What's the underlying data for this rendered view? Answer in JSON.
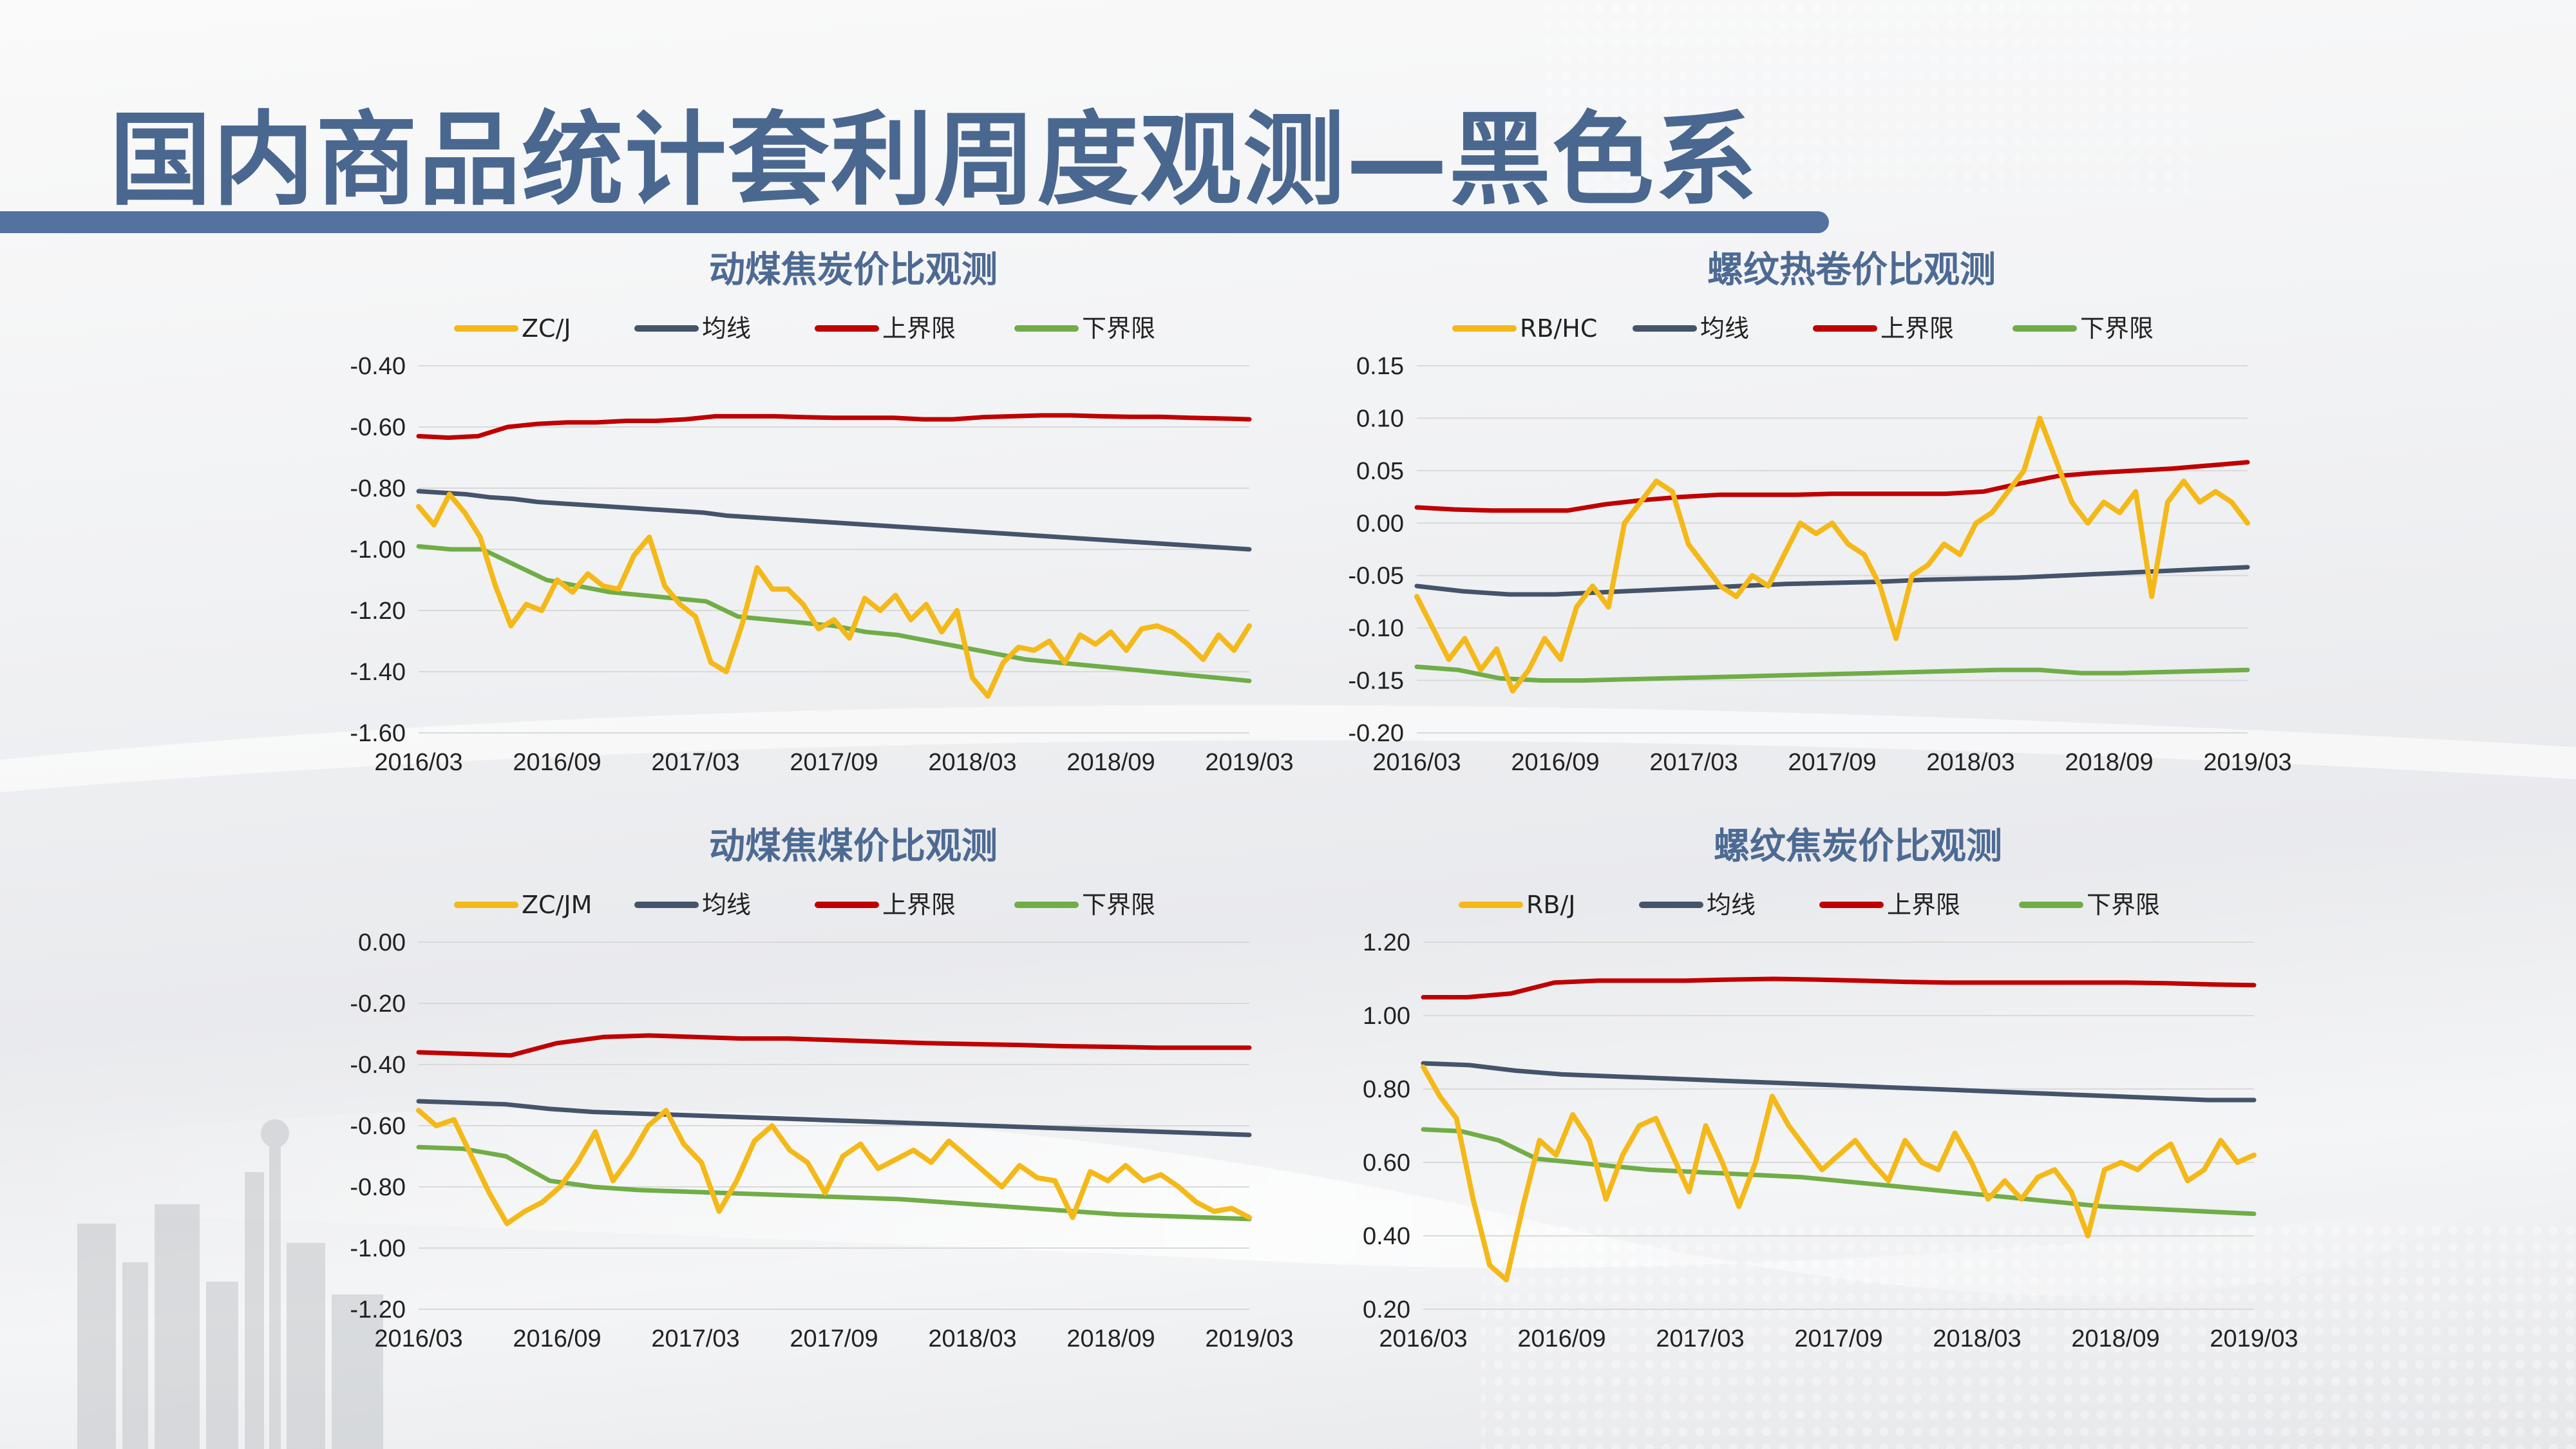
{
  "page": {
    "title": "国内商品统计套利周度观测—黑色系"
  },
  "colors": {
    "ratio": "#f4b919",
    "mean": "#44546a",
    "upper": "#c00000",
    "lower": "#70ad47",
    "title": "#4a678f"
  },
  "chart_data": [
    {
      "type": "line",
      "title": "动煤焦炭价比观测",
      "x_labels": [
        "2016/03",
        "2016/09",
        "2017/03",
        "2017/09",
        "2018/03",
        "2018/09",
        "2019/03"
      ],
      "ylim": [
        -1.6,
        -0.4
      ],
      "y_ticks": [
        "-0.40",
        "-0.60",
        "-0.80",
        "-1.00",
        "-1.20",
        "-1.40",
        "-1.60"
      ],
      "grid": true,
      "legend": "top",
      "series": [
        {
          "name": "ZC/J",
          "values": [
            -0.86,
            -0.92,
            -0.82,
            -0.88,
            -0.96,
            -1.12,
            -1.25,
            -1.18,
            -1.2,
            -1.1,
            -1.14,
            -1.08,
            -1.12,
            -1.13,
            -1.02,
            -0.96,
            -1.12,
            -1.18,
            -1.22,
            -1.37,
            -1.4,
            -1.25,
            -1.06,
            -1.13,
            -1.13,
            -1.18,
            -1.26,
            -1.23,
            -1.29,
            -1.16,
            -1.2,
            -1.15,
            -1.23,
            -1.18,
            -1.27,
            -1.2,
            -1.42,
            -1.48,
            -1.37,
            -1.32,
            -1.33,
            -1.3,
            -1.37,
            -1.28,
            -1.31,
            -1.27,
            -1.33,
            -1.26,
            -1.25,
            -1.27,
            -1.31,
            -1.36,
            -1.28,
            -1.33,
            -1.25
          ]
        },
        {
          "name": "均线",
          "values": [
            -0.81,
            -0.815,
            -0.82,
            -0.83,
            -0.835,
            -0.845,
            -0.85,
            -0.855,
            -0.86,
            -0.865,
            -0.87,
            -0.875,
            -0.88,
            -0.89,
            -0.895,
            -0.9,
            -0.905,
            -0.91,
            -0.915,
            -0.92,
            -0.925,
            -0.93,
            -0.935,
            -0.94,
            -0.945,
            -0.95,
            -0.955,
            -0.96,
            -0.965,
            -0.97,
            -0.975,
            -0.98,
            -0.985,
            -0.99,
            -0.995,
            -1.0
          ]
        },
        {
          "name": "上界限",
          "values": [
            -0.63,
            -0.635,
            -0.63,
            -0.6,
            -0.59,
            -0.585,
            -0.585,
            -0.58,
            -0.58,
            -0.575,
            -0.565,
            -0.565,
            -0.565,
            -0.568,
            -0.57,
            -0.57,
            -0.57,
            -0.575,
            -0.575,
            -0.568,
            -0.565,
            -0.562,
            -0.562,
            -0.565,
            -0.567,
            -0.567,
            -0.57,
            -0.572,
            -0.575
          ]
        },
        {
          "name": "下界限",
          "values": [
            -0.99,
            -1.0,
            -1.0,
            -1.05,
            -1.1,
            -1.12,
            -1.14,
            -1.15,
            -1.16,
            -1.17,
            -1.22,
            -1.23,
            -1.24,
            -1.25,
            -1.27,
            -1.28,
            -1.3,
            -1.32,
            -1.34,
            -1.36,
            -1.37,
            -1.38,
            -1.39,
            -1.4,
            -1.41,
            -1.42,
            -1.43
          ]
        }
      ]
    },
    {
      "type": "line",
      "title": "螺纹热卷价比观测",
      "x_labels": [
        "2016/03",
        "2016/09",
        "2017/03",
        "2017/09",
        "2018/03",
        "2018/09",
        "2019/03"
      ],
      "ylim": [
        -0.2,
        0.15
      ],
      "y_ticks": [
        "0.15",
        "0.10",
        "0.05",
        "0.00",
        "-0.05",
        "-0.10",
        "-0.15",
        "-0.20"
      ],
      "grid": true,
      "legend": "top",
      "series": [
        {
          "name": "RB/HC",
          "values": [
            -0.07,
            -0.1,
            -0.13,
            -0.11,
            -0.14,
            -0.12,
            -0.16,
            -0.14,
            -0.11,
            -0.13,
            -0.08,
            -0.06,
            -0.08,
            0.0,
            0.02,
            0.04,
            0.03,
            -0.02,
            -0.04,
            -0.06,
            -0.07,
            -0.05,
            -0.06,
            -0.03,
            0.0,
            -0.01,
            0.0,
            -0.02,
            -0.03,
            -0.06,
            -0.11,
            -0.05,
            -0.04,
            -0.02,
            -0.03,
            0.0,
            0.01,
            0.03,
            0.05,
            0.1,
            0.06,
            0.02,
            0.0,
            0.02,
            0.01,
            0.03,
            -0.07,
            0.02,
            0.04,
            0.02,
            0.03,
            0.02,
            0.0
          ]
        },
        {
          "name": "均线",
          "values": [
            -0.06,
            -0.065,
            -0.068,
            -0.068,
            -0.066,
            -0.064,
            -0.062,
            -0.06,
            -0.058,
            -0.057,
            -0.056,
            -0.054,
            -0.053,
            -0.052,
            -0.05,
            -0.048,
            -0.046,
            -0.044,
            -0.042
          ]
        },
        {
          "name": "上界限",
          "values": [
            0.015,
            0.013,
            0.012,
            0.012,
            0.012,
            0.018,
            0.022,
            0.025,
            0.027,
            0.027,
            0.027,
            0.028,
            0.028,
            0.028,
            0.028,
            0.03,
            0.038,
            0.045,
            0.048,
            0.05,
            0.052,
            0.055,
            0.058
          ]
        },
        {
          "name": "下界限",
          "values": [
            -0.137,
            -0.14,
            -0.148,
            -0.15,
            -0.15,
            -0.149,
            -0.148,
            -0.147,
            -0.146,
            -0.145,
            -0.144,
            -0.143,
            -0.142,
            -0.141,
            -0.14,
            -0.14,
            -0.143,
            -0.143,
            -0.142,
            -0.141,
            -0.14
          ]
        }
      ]
    },
    {
      "type": "line",
      "title": "动煤焦煤价比观测",
      "x_labels": [
        "2016/03",
        "2016/09",
        "2017/03",
        "2017/09",
        "2018/03",
        "2018/09",
        "2019/03"
      ],
      "ylim": [
        -1.2,
        0
      ],
      "y_ticks": [
        "0.00",
        "-0.20",
        "-0.40",
        "-0.60",
        "-0.80",
        "-1.00",
        "-1.20"
      ],
      "grid": true,
      "legend": "top",
      "series": [
        {
          "name": "ZC/JM",
          "values": [
            -0.55,
            -0.6,
            -0.58,
            -0.7,
            -0.82,
            -0.92,
            -0.88,
            -0.85,
            -0.8,
            -0.72,
            -0.62,
            -0.78,
            -0.7,
            -0.6,
            -0.55,
            -0.66,
            -0.72,
            -0.88,
            -0.78,
            -0.65,
            -0.6,
            -0.68,
            -0.72,
            -0.82,
            -0.7,
            -0.66,
            -0.74,
            -0.71,
            -0.68,
            -0.72,
            -0.65,
            -0.7,
            -0.75,
            -0.8,
            -0.73,
            -0.77,
            -0.78,
            -0.9,
            -0.75,
            -0.78,
            -0.73,
            -0.78,
            -0.76,
            -0.8,
            -0.85,
            -0.88,
            -0.87,
            -0.9
          ]
        },
        {
          "name": "均线",
          "values": [
            -0.52,
            -0.525,
            -0.53,
            -0.545,
            -0.555,
            -0.56,
            -0.565,
            -0.57,
            -0.575,
            -0.58,
            -0.585,
            -0.59,
            -0.595,
            -0.6,
            -0.605,
            -0.61,
            -0.615,
            -0.62,
            -0.625,
            -0.63
          ]
        },
        {
          "name": "上界限",
          "values": [
            -0.36,
            -0.365,
            -0.37,
            -0.33,
            -0.31,
            -0.305,
            -0.31,
            -0.315,
            -0.315,
            -0.32,
            -0.325,
            -0.33,
            -0.333,
            -0.336,
            -0.34,
            -0.342,
            -0.345,
            -0.345,
            -0.345
          ]
        },
        {
          "name": "下界限",
          "values": [
            -0.67,
            -0.675,
            -0.7,
            -0.78,
            -0.8,
            -0.81,
            -0.815,
            -0.82,
            -0.825,
            -0.83,
            -0.835,
            -0.84,
            -0.85,
            -0.86,
            -0.87,
            -0.88,
            -0.89,
            -0.895,
            -0.9,
            -0.905
          ]
        }
      ]
    },
    {
      "type": "line",
      "title": "螺纹焦炭价比观测",
      "x_labels": [
        "2016/03",
        "2016/09",
        "2017/03",
        "2017/09",
        "2018/03",
        "2018/09",
        "2019/03"
      ],
      "ylim": [
        0.2,
        1.2
      ],
      "y_ticks": [
        "1.20",
        "1.00",
        "0.80",
        "0.60",
        "0.40",
        "0.20"
      ],
      "grid": true,
      "legend": "top",
      "series": [
        {
          "name": "RB/J",
          "values": [
            0.86,
            0.78,
            0.72,
            0.5,
            0.32,
            0.28,
            0.48,
            0.66,
            0.62,
            0.73,
            0.66,
            0.5,
            0.62,
            0.7,
            0.72,
            0.62,
            0.52,
            0.7,
            0.6,
            0.48,
            0.6,
            0.78,
            0.7,
            0.64,
            0.58,
            0.62,
            0.66,
            0.6,
            0.55,
            0.66,
            0.6,
            0.58,
            0.68,
            0.6,
            0.5,
            0.55,
            0.5,
            0.56,
            0.58,
            0.52,
            0.4,
            0.58,
            0.6,
            0.58,
            0.62,
            0.65,
            0.55,
            0.58,
            0.66,
            0.6,
            0.62
          ]
        },
        {
          "name": "均线",
          "values": [
            0.87,
            0.865,
            0.85,
            0.84,
            0.835,
            0.83,
            0.825,
            0.82,
            0.815,
            0.81,
            0.805,
            0.8,
            0.795,
            0.79,
            0.785,
            0.78,
            0.775,
            0.77,
            0.77
          ]
        },
        {
          "name": "上界限",
          "values": [
            1.05,
            1.05,
            1.06,
            1.09,
            1.095,
            1.095,
            1.095,
            1.098,
            1.1,
            1.098,
            1.095,
            1.092,
            1.09,
            1.09,
            1.09,
            1.09,
            1.09,
            1.088,
            1.085,
            1.083
          ]
        },
        {
          "name": "下界限",
          "values": [
            0.69,
            0.685,
            0.66,
            0.61,
            0.6,
            0.59,
            0.58,
            0.575,
            0.57,
            0.565,
            0.56,
            0.55,
            0.54,
            0.53,
            0.52,
            0.51,
            0.5,
            0.49,
            0.48,
            0.475,
            0.47,
            0.465,
            0.46
          ]
        }
      ]
    }
  ]
}
